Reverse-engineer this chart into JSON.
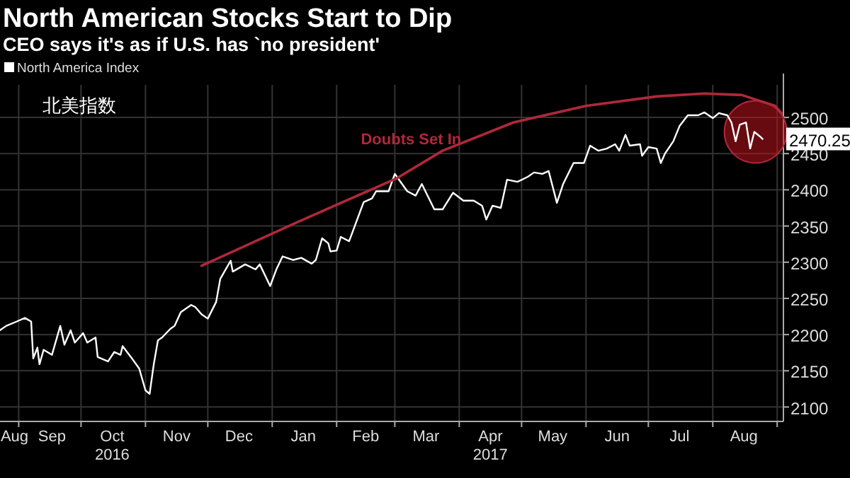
{
  "chart_data": {
    "type": "line",
    "title": "North American Stocks Start to Dip",
    "subtitle": "CEO says it's as if U.S. has `no president'",
    "annotations": [
      "北美指数"
    ],
    "xlim": [
      "2016-08-23",
      "2017-09-04"
    ],
    "ylim": [
      2080,
      2545
    ],
    "yticks": [
      2100,
      2150,
      2200,
      2250,
      2300,
      2350,
      2400,
      2450,
      2500
    ],
    "xticks": [
      {
        "value": "2016-09-01",
        "label": null
      },
      {
        "value": "2016-10-01",
        "label": null
      },
      {
        "value": "2016-11-01",
        "label": null
      },
      {
        "value": "2016-12-01",
        "label": null
      },
      {
        "value": "2017-01-01",
        "label": null
      },
      {
        "value": "2017-02-01",
        "label": null
      },
      {
        "value": "2017-03-01",
        "label": null
      },
      {
        "value": "2017-04-01",
        "label": null
      },
      {
        "value": "2017-05-01",
        "label": null
      },
      {
        "value": "2017-06-01",
        "label": null
      },
      {
        "value": "2017-07-01",
        "label": null
      },
      {
        "value": "2017-08-01",
        "label": null
      },
      {
        "value": "2017-09-01",
        "label": null
      },
      {
        "value": "2016-08-30",
        "label": "Aug"
      },
      {
        "value": "2016-09-17",
        "label": "Sep"
      },
      {
        "value": "2016-10-16",
        "label": "Oct\n2016"
      },
      {
        "value": "2016-11-16",
        "label": "Nov"
      },
      {
        "value": "2016-12-16",
        "label": "Dec"
      },
      {
        "value": "2017-01-16",
        "label": "Jan"
      },
      {
        "value": "2017-02-15",
        "label": "Feb"
      },
      {
        "value": "2017-03-16",
        "label": "Mar"
      },
      {
        "value": "2017-04-16",
        "label": "Apr\n2017"
      },
      {
        "value": "2017-05-16",
        "label": "May"
      },
      {
        "value": "2017-06-16",
        "label": "Jun"
      },
      {
        "value": "2017-07-16",
        "label": "Jul"
      },
      {
        "value": "2017-08-16",
        "label": "Aug"
      }
    ],
    "grid": true,
    "legend": "top left",
    "series": [
      {
        "name": "North America Index",
        "color": "#ffffff",
        "x": [
          "2016-08-23",
          "2016-08-26",
          "2016-08-31",
          "2016-09-04",
          "2016-09-07",
          "2016-09-08",
          "2016-09-10",
          "2016-09-11",
          "2016-09-13",
          "2016-09-17",
          "2016-09-21",
          "2016-09-23",
          "2016-09-26",
          "2016-09-28",
          "2016-10-02",
          "2016-10-04",
          "2016-10-08",
          "2016-10-09",
          "2016-10-14",
          "2016-10-17",
          "2016-10-20",
          "2016-10-21",
          "2016-10-25",
          "2016-10-29",
          "2016-11-01",
          "2016-11-03",
          "2016-11-05",
          "2016-11-07",
          "2016-11-09",
          "2016-11-13",
          "2016-11-15",
          "2016-11-18",
          "2016-11-23",
          "2016-11-25",
          "2016-11-28",
          "2016-12-01",
          "2016-12-05",
          "2016-12-07",
          "2016-12-09",
          "2016-12-12",
          "2016-12-13",
          "2016-12-19",
          "2016-12-24",
          "2016-12-26",
          "2016-12-31",
          "2017-01-03",
          "2017-01-06",
          "2017-01-11",
          "2017-01-15",
          "2017-01-20",
          "2017-01-22",
          "2017-01-25",
          "2017-01-28",
          "2017-01-29",
          "2017-02-01",
          "2017-02-03",
          "2017-02-07",
          "2017-02-14",
          "2017-02-18",
          "2017-02-20",
          "2017-02-26",
          "2017-03-01",
          "2017-03-04",
          "2017-03-07",
          "2017-03-11",
          "2017-03-14",
          "2017-03-20",
          "2017-03-24",
          "2017-03-29",
          "2017-04-03",
          "2017-04-08",
          "2017-04-12",
          "2017-04-14",
          "2017-04-17",
          "2017-04-21",
          "2017-04-24",
          "2017-04-29",
          "2017-05-04",
          "2017-05-07",
          "2017-05-11",
          "2017-05-14",
          "2017-05-18",
          "2017-05-21",
          "2017-05-26",
          "2017-05-31",
          "2017-06-03",
          "2017-06-07",
          "2017-06-11",
          "2017-06-15",
          "2017-06-17",
          "2017-06-20",
          "2017-06-22",
          "2017-06-27",
          "2017-06-28",
          "2017-07-01",
          "2017-07-05",
          "2017-07-07",
          "2017-07-09",
          "2017-07-13",
          "2017-07-16",
          "2017-07-20",
          "2017-07-25",
          "2017-07-28",
          "2017-08-01",
          "2017-08-04",
          "2017-08-08",
          "2017-08-10",
          "2017-08-12",
          "2017-08-14",
          "2017-08-17",
          "2017-08-19",
          "2017-08-21",
          "2017-08-24",
          "2017-08-25"
        ],
        "values": [
          2206,
          2212,
          2218,
          2223,
          2218,
          2167,
          2182,
          2159,
          2179,
          2172,
          2212,
          2186,
          2206,
          2189,
          2202,
          2189,
          2196,
          2169,
          2163,
          2176,
          2172,
          2184,
          2169,
          2153,
          2123,
          2118,
          2159,
          2192,
          2196,
          2208,
          2212,
          2231,
          2241,
          2238,
          2228,
          2222,
          2245,
          2277,
          2287,
          2302,
          2287,
          2297,
          2290,
          2297,
          2267,
          2290,
          2308,
          2303,
          2306,
          2298,
          2303,
          2333,
          2326,
          2315,
          2316,
          2335,
          2329,
          2383,
          2388,
          2398,
          2398,
          2422,
          2410,
          2398,
          2392,
          2408,
          2373,
          2373,
          2396,
          2385,
          2385,
          2378,
          2359,
          2378,
          2375,
          2414,
          2411,
          2418,
          2424,
          2422,
          2426,
          2382,
          2408,
          2437,
          2437,
          2461,
          2454,
          2457,
          2463,
          2454,
          2476,
          2461,
          2463,
          2447,
          2459,
          2457,
          2437,
          2450,
          2467,
          2488,
          2503,
          2503,
          2507,
          2499,
          2506,
          2503,
          2493,
          2467,
          2490,
          2493,
          2457,
          2480,
          2473,
          2470.25
        ],
        "value_labels": [
          null,
          null,
          null,
          null,
          null,
          null,
          null,
          null,
          null,
          null,
          null,
          null,
          null,
          null,
          null,
          null,
          null,
          null,
          null,
          null,
          null,
          null,
          null,
          null,
          null,
          null,
          null,
          null,
          null,
          null,
          null,
          null,
          null,
          null,
          null,
          null,
          null,
          null,
          null,
          null,
          null,
          null,
          null,
          null,
          null,
          null,
          null,
          null,
          null,
          null,
          null,
          null,
          null,
          null,
          null,
          null,
          null,
          null,
          null,
          null,
          null,
          null,
          null,
          null,
          null,
          null,
          null,
          null,
          null,
          null,
          null,
          null,
          null,
          null,
          null,
          null,
          null,
          null,
          null,
          null,
          null,
          null,
          null,
          null,
          null,
          null,
          null,
          null,
          null,
          null,
          null,
          null,
          null,
          null,
          null,
          null,
          null,
          null,
          null,
          null,
          null,
          null,
          null,
          null,
          null,
          null,
          null,
          null,
          null,
          null,
          null,
          null,
          null,
          "2470.25"
        ]
      },
      {
        "name": "Doubts Set In",
        "color": "#b0283a",
        "x": [
          "2016-11-28",
          "2017-01-12",
          "2017-03-02",
          "2017-03-24",
          "2017-04-27",
          "2017-06-01",
          "2017-07-05",
          "2017-07-28",
          "2017-08-15",
          "2017-08-31",
          "2017-09-03"
        ],
        "values": [
          2295,
          2354,
          2416,
          2454,
          2493,
          2516,
          2529,
          2533,
          2531,
          2516,
          2506
        ]
      }
    ]
  }
}
